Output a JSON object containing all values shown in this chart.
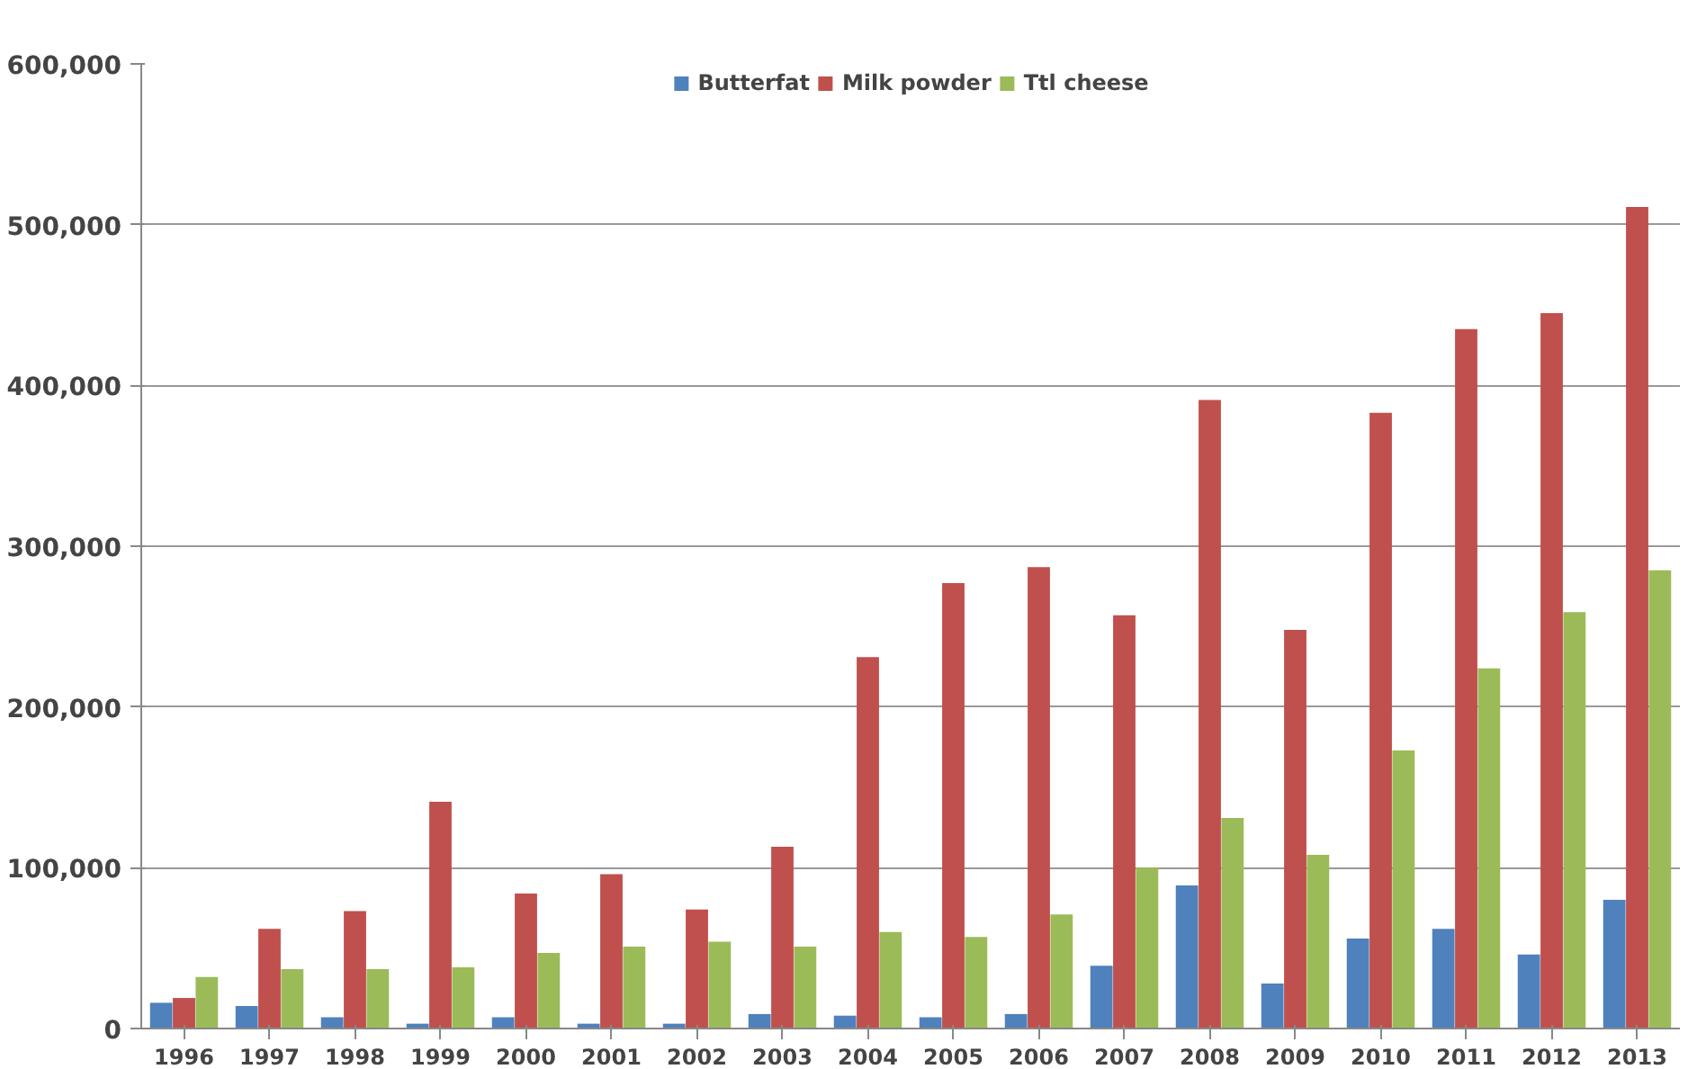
{
  "chart_data": {
    "type": "bar",
    "categories": [
      "1996",
      "1997",
      "1998",
      "1999",
      "2000",
      "2001",
      "2002",
      "2003",
      "2004",
      "2005",
      "2006",
      "2007",
      "2008",
      "2009",
      "2010",
      "2011",
      "2012",
      "2013"
    ],
    "series": [
      {
        "name": "Butterfat",
        "color": "#4f81bd",
        "values": [
          16000,
          14000,
          7000,
          3000,
          7000,
          3000,
          3000,
          9000,
          8000,
          7000,
          9000,
          39000,
          89000,
          28000,
          56000,
          62000,
          46000,
          80000
        ]
      },
      {
        "name": "Milk powder",
        "color": "#c0504d",
        "values": [
          19000,
          62000,
          73000,
          141000,
          84000,
          96000,
          74000,
          113000,
          231000,
          277000,
          287000,
          257000,
          391000,
          248000,
          383000,
          435000,
          445000,
          511000
        ]
      },
      {
        "name": "Ttl cheese",
        "color": "#9bbb59",
        "values": [
          32000,
          37000,
          37000,
          38000,
          47000,
          51000,
          54000,
          51000,
          60000,
          57000,
          71000,
          100000,
          131000,
          108000,
          173000,
          224000,
          259000,
          285000
        ]
      }
    ],
    "ylim": [
      0,
      600000
    ],
    "yticks": [
      {
        "value": 0,
        "label": "0"
      },
      {
        "value": 100000,
        "label": "100,000"
      },
      {
        "value": 200000,
        "label": "200,000"
      },
      {
        "value": 300000,
        "label": "300,000"
      },
      {
        "value": 400000,
        "label": "400,000"
      },
      {
        "value": 500000,
        "label": "500,000"
      },
      {
        "value": 600000,
        "label": "600,000"
      }
    ],
    "grid": "y",
    "legend": "top"
  }
}
